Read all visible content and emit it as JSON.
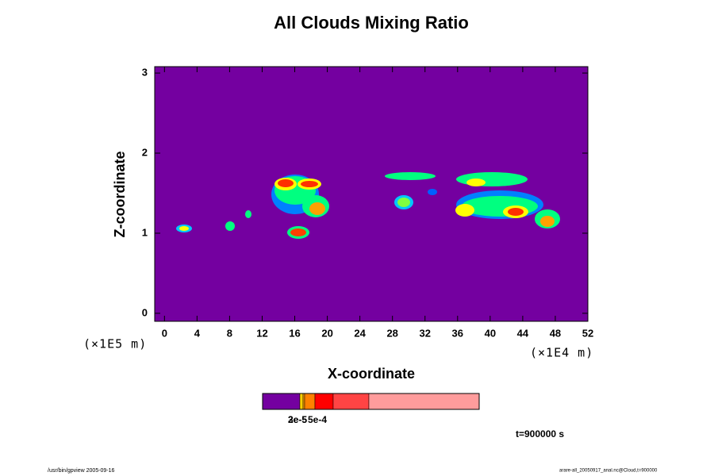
{
  "chart_data": {
    "type": "contour",
    "title": "All Clouds Mixing Ratio",
    "x_label": "X-coordinate",
    "y_label": "Z-coordinate",
    "x_unit_label": "(×1E4 m)",
    "y_unit_label": "(×1E5 m)",
    "xlim": [
      -1.2,
      52
    ],
    "ylim": [
      -0.1,
      3.08
    ],
    "xticks": [
      0,
      4,
      8,
      12,
      16,
      20,
      24,
      28,
      32,
      36,
      40,
      44,
      48,
      52
    ],
    "yticks": [
      0,
      1,
      2,
      3
    ],
    "background_color": "#7400a0",
    "colorbar": {
      "colors": [
        "#7400a0",
        "#ffd000",
        "#ffa000",
        "#ff8000",
        "#ff0000",
        "#ff4444",
        "#ff9c9c"
      ],
      "labels": [
        "2e-5",
        "3e-5",
        "5e-4"
      ]
    },
    "time_label": "t=900000 s",
    "footer_left": "/usr/bin/gpview 2005-09-16",
    "footer_right": "arare-all_20050917_anal.nc@Cloud,t=900000"
  }
}
